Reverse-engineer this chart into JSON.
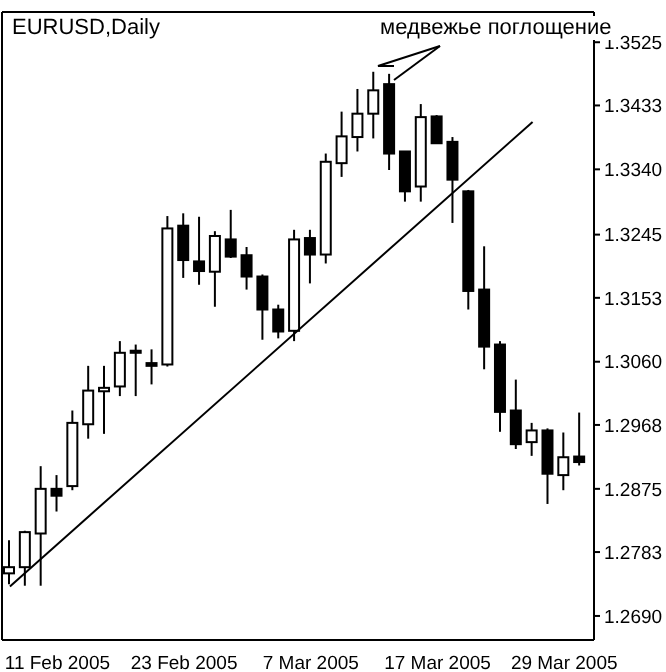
{
  "chart_data": {
    "type": "candlestick",
    "title": "EURUSD,Daily",
    "annotations": [
      "медвежье поглощение"
    ],
    "color": "#000000",
    "categories": [
      null,
      null,
      null,
      "11 Feb 2005",
      null,
      null,
      null,
      null,
      null,
      null,
      null,
      "23 Feb 2005",
      null,
      null,
      null,
      null,
      null,
      null,
      null,
      "7 Mar 2005",
      null,
      null,
      null,
      null,
      null,
      null,
      null,
      "17 Mar 2005",
      null,
      null,
      null,
      null,
      null,
      null,
      null,
      "29 Mar 2005",
      null
    ],
    "ohlc": [
      [
        1.2752,
        1.28,
        1.2736,
        1.2761
      ],
      [
        1.2761,
        1.2814,
        1.2734,
        1.2812
      ],
      [
        1.281,
        1.2908,
        1.2734,
        1.2875
      ],
      [
        1.2875,
        1.2895,
        1.2842,
        1.2865
      ],
      [
        1.2879,
        1.2989,
        1.2873,
        1.2971
      ],
      [
        1.2969,
        1.3054,
        1.2948,
        1.3018
      ],
      [
        1.3017,
        1.3054,
        1.2955,
        1.3022
      ],
      [
        1.3024,
        1.309,
        1.301,
        1.3073
      ],
      [
        1.3076,
        1.3085,
        1.301,
        1.3073
      ],
      [
        1.3058,
        1.3078,
        1.3027,
        1.3054
      ],
      [
        1.3056,
        1.3272,
        1.3053,
        1.3254
      ],
      [
        1.3258,
        1.3276,
        1.3182,
        1.3208
      ],
      [
        1.3206,
        1.3271,
        1.3172,
        1.3192
      ],
      [
        1.3191,
        1.325,
        1.314,
        1.3243
      ],
      [
        1.3238,
        1.3281,
        1.3211,
        1.3213
      ],
      [
        1.3215,
        1.3227,
        1.3165,
        1.3184
      ],
      [
        1.3184,
        1.3187,
        1.3092,
        1.3136
      ],
      [
        1.3136,
        1.3143,
        1.3094,
        1.3104
      ],
      [
        1.3105,
        1.3252,
        1.309,
        1.3238
      ],
      [
        1.324,
        1.3252,
        1.3174,
        1.3216
      ],
      [
        1.3216,
        1.3363,
        1.3203,
        1.3351
      ],
      [
        1.3349,
        1.3424,
        1.3329,
        1.3388
      ],
      [
        1.3387,
        1.3457,
        1.3366,
        1.3421
      ],
      [
        1.3421,
        1.3482,
        1.3385,
        1.3455
      ],
      [
        1.3464,
        1.3479,
        1.3339,
        1.3363
      ],
      [
        1.3366,
        1.3366,
        1.3293,
        1.3308
      ],
      [
        1.3315,
        1.3435,
        1.3293,
        1.3416
      ],
      [
        1.3417,
        1.3419,
        1.3378,
        1.3378
      ],
      [
        1.338,
        1.3387,
        1.3262,
        1.3325
      ],
      [
        1.3308,
        1.331,
        1.3136,
        1.3163
      ],
      [
        1.3165,
        1.3228,
        1.3049,
        1.3082
      ],
      [
        1.3085,
        1.309,
        1.2958,
        1.2987
      ],
      [
        1.2989,
        1.3034,
        1.2933,
        1.294
      ],
      [
        1.2943,
        1.2971,
        1.2923,
        1.296
      ],
      [
        1.296,
        1.2963,
        1.2853,
        1.2897
      ],
      [
        1.2895,
        1.2957,
        1.2873,
        1.2921
      ],
      [
        1.2922,
        1.2986,
        1.2909,
        1.2914
      ]
    ],
    "series": [
      {
        "type": "line",
        "color": "#000000",
        "values": [
          1.2733,
          null,
          null,
          null,
          null,
          null,
          null,
          null,
          null,
          null,
          null,
          null,
          null,
          null,
          null,
          null,
          null,
          null,
          null,
          null,
          null,
          null,
          null,
          null,
          null,
          null,
          null,
          null,
          null,
          null,
          null,
          null,
          null,
          1.3409,
          null,
          null,
          null
        ]
      }
    ],
    "ylim": [
      1.2655,
      1.3569
    ],
    "yticks": [
      {
        "value": 1.269,
        "label": "1.2690"
      },
      1.2783,
      1.2875,
      1.2968,
      {
        "value": 1.306,
        "label": "1.3060"
      },
      1.3153,
      1.3245,
      {
        "value": 1.334,
        "label": "1.3340"
      },
      1.3433,
      1.3525
    ]
  }
}
